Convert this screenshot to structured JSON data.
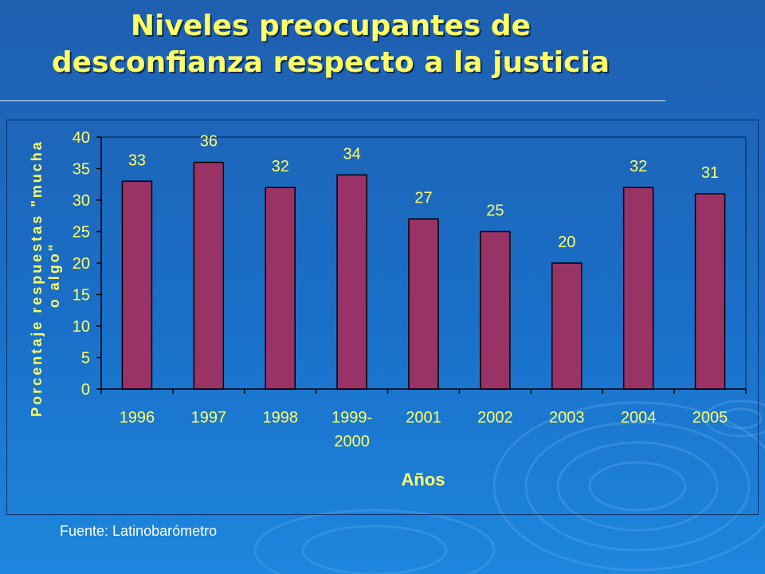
{
  "title_line1": "Niveles preocupantes de",
  "title_line2": "desconfianza respecto a la justicia",
  "source": "Fuente: Latinobarómetro",
  "colors": {
    "bar": "#993366",
    "title": "#ffff66",
    "background": "#1a6fc8"
  },
  "chart_data": {
    "type": "bar",
    "categories": [
      "1996",
      "1997",
      "1998",
      "1999-\n2000",
      "2001",
      "2002",
      "2003",
      "2004",
      "2005"
    ],
    "values": [
      33,
      36,
      32,
      34,
      27,
      25,
      20,
      32,
      31
    ],
    "xlabel": "Años",
    "ylabel_line1": "Porcentaje respuestas \"mucha",
    "ylabel_line2": "o algo\"",
    "ylim": [
      0,
      40
    ],
    "yticks": [
      0,
      5,
      10,
      15,
      20,
      25,
      30,
      35,
      40
    ],
    "data_labels": true,
    "grid": false,
    "legend": "none"
  }
}
